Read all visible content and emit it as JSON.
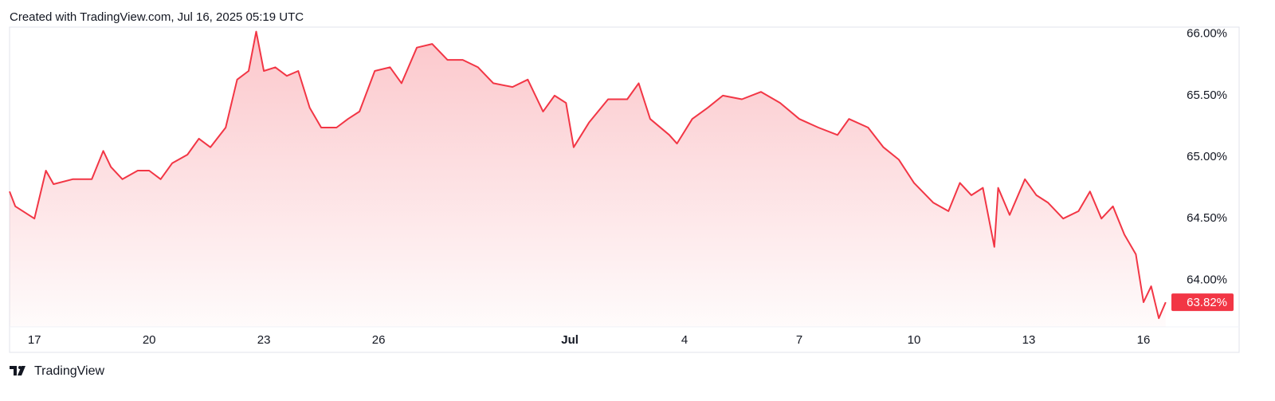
{
  "header": "Created with TradingView.com, Jul 16, 2025 05:19 UTC",
  "footer": "TradingView",
  "chart_data": {
    "type": "area",
    "x": [
      16.35,
      16.5,
      17.0,
      17.3,
      17.5,
      18.0,
      18.5,
      18.8,
      19.0,
      19.3,
      19.7,
      20.0,
      20.3,
      20.6,
      21.0,
      21.3,
      21.6,
      22.0,
      22.3,
      22.6,
      22.8,
      23.0,
      23.3,
      23.6,
      23.9,
      24.2,
      24.5,
      24.9,
      25.2,
      25.5,
      25.9,
      26.3,
      26.6,
      27.0,
      27.4,
      27.8,
      28.2,
      28.6,
      29.0,
      29.5,
      29.9,
      30.3,
      30.6,
      30.9,
      31.1,
      31.5,
      32.0,
      32.5,
      32.8,
      33.1,
      33.6,
      33.8,
      34.2,
      34.6,
      35.0,
      35.5,
      36.0,
      36.5,
      37.0,
      37.5,
      38.0,
      38.3,
      38.8,
      39.2,
      39.6,
      40.0,
      40.5,
      40.9,
      41.2,
      41.5,
      41.8,
      42.1,
      42.2,
      42.5,
      42.9,
      43.2,
      43.5,
      43.9,
      44.3,
      44.6,
      44.9,
      45.2,
      45.5,
      45.8,
      46.0,
      46.2,
      46.4,
      46.58
    ],
    "series": [
      {
        "color": "#f23645",
        "values": [
          64.72,
          64.6,
          64.5,
          64.89,
          64.78,
          64.82,
          64.82,
          65.05,
          64.92,
          64.82,
          64.89,
          64.89,
          64.82,
          64.95,
          65.02,
          65.15,
          65.08,
          65.24,
          65.63,
          65.7,
          66.02,
          65.7,
          65.73,
          65.66,
          65.7,
          65.4,
          65.24,
          65.24,
          65.31,
          65.37,
          65.7,
          65.73,
          65.6,
          65.89,
          65.92,
          65.79,
          65.79,
          65.73,
          65.6,
          65.57,
          65.63,
          65.37,
          65.5,
          65.44,
          65.08,
          65.28,
          65.47,
          65.47,
          65.6,
          65.31,
          65.18,
          65.11,
          65.31,
          65.4,
          65.5,
          65.47,
          65.53,
          65.44,
          65.31,
          65.24,
          65.18,
          65.31,
          65.24,
          65.08,
          64.98,
          64.79,
          64.63,
          64.56,
          64.79,
          64.69,
          64.75,
          64.27,
          64.75,
          64.53,
          64.82,
          64.69,
          64.63,
          64.5,
          64.56,
          64.72,
          64.5,
          64.6,
          64.37,
          64.21,
          63.82,
          63.95,
          63.69,
          63.82
        ]
      }
    ],
    "xlim": [
      16.35,
      46.73
    ],
    "xticks": [
      {
        "value": 17,
        "label": "17"
      },
      {
        "value": 20,
        "label": "20"
      },
      {
        "value": 23,
        "label": "23"
      },
      {
        "value": 26,
        "label": "26"
      },
      {
        "value": 31,
        "label": "Jul"
      },
      {
        "value": 34,
        "label": "4"
      },
      {
        "value": 37,
        "label": "7"
      },
      {
        "value": 40,
        "label": "10"
      },
      {
        "value": 43,
        "label": "13"
      },
      {
        "value": 46,
        "label": "16"
      }
    ],
    "ylim": [
      63.62,
      66.05
    ],
    "yticks": [
      {
        "value": 64,
        "label": "64.00%"
      },
      {
        "value": 64.5,
        "label": "64.50%"
      },
      {
        "value": 65,
        "label": "65.00%"
      },
      {
        "value": 65.5,
        "label": "65.50%"
      },
      {
        "value": 66,
        "label": "66.00%"
      }
    ],
    "last_value": {
      "value": 63.82,
      "label": "63.82%"
    }
  }
}
